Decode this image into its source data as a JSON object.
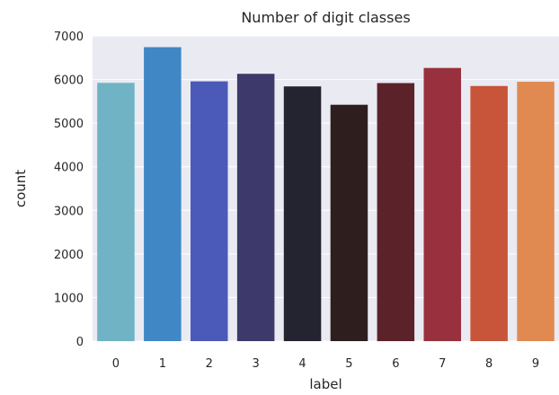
{
  "chart_data": {
    "type": "bar",
    "title": "Number of digit classes",
    "xlabel": "label",
    "ylabel": "count",
    "categories": [
      "0",
      "1",
      "2",
      "3",
      "4",
      "5",
      "6",
      "7",
      "8",
      "9"
    ],
    "values": [
      5923,
      6742,
      5958,
      6131,
      5842,
      5421,
      5918,
      6265,
      5851,
      5949
    ],
    "ylim": [
      0,
      7000
    ],
    "yticks": [
      "0",
      "1000",
      "2000",
      "3000",
      "4000",
      "5000",
      "6000",
      "7000"
    ],
    "grid": true,
    "background_color": "#eaeaf2",
    "grid_color": "#ffffff",
    "colors": [
      "#6fb3c4",
      "#3f88c5",
      "#4b5ab8",
      "#3d3a6b",
      "#23242f",
      "#2e1f1e",
      "#5b2329",
      "#98313d",
      "#c8553a",
      "#e08a52"
    ]
  }
}
